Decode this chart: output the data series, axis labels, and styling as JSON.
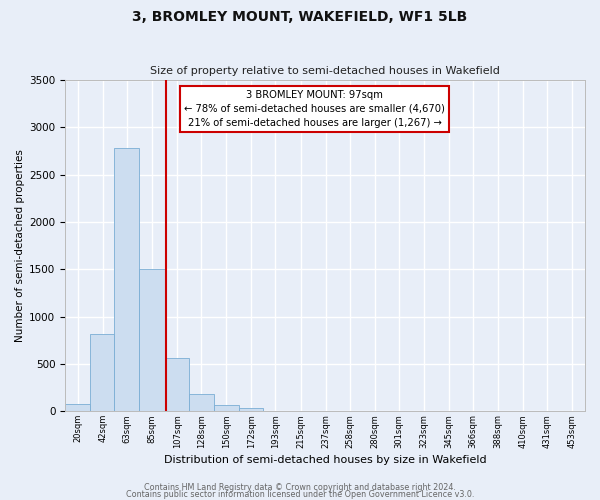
{
  "title": "3, BROMLEY MOUNT, WAKEFIELD, WF1 5LB",
  "subtitle": "Size of property relative to semi-detached houses in Wakefield",
  "xlabel": "Distribution of semi-detached houses by size in Wakefield",
  "ylabel": "Number of semi-detached properties",
  "bin_edges": [
    9,
    31,
    52,
    74,
    96,
    117,
    139,
    161,
    182,
    204,
    226,
    247,
    269,
    290,
    312,
    334,
    355,
    377,
    399,
    420,
    442,
    464
  ],
  "tick_positions": [
    20,
    42,
    63,
    85,
    107,
    128,
    150,
    172,
    193,
    215,
    237,
    258,
    280,
    301,
    323,
    345,
    366,
    388,
    410,
    431,
    453
  ],
  "tick_labels": [
    "20sqm",
    "42sqm",
    "63sqm",
    "85sqm",
    "107sqm",
    "128sqm",
    "150sqm",
    "172sqm",
    "193sqm",
    "215sqm",
    "237sqm",
    "258sqm",
    "280sqm",
    "301sqm",
    "323sqm",
    "345sqm",
    "366sqm",
    "388sqm",
    "410sqm",
    "431sqm",
    "453sqm"
  ],
  "bar_heights": [
    75,
    820,
    2780,
    1500,
    560,
    185,
    65,
    30,
    0,
    0,
    0,
    0,
    0,
    0,
    0,
    0,
    0,
    0,
    0,
    0,
    0
  ],
  "bar_color": "#ccddf0",
  "bar_edge_color": "#7aadd4",
  "ylim": [
    0,
    3500
  ],
  "yticks": [
    0,
    500,
    1000,
    1500,
    2000,
    2500,
    3000,
    3500
  ],
  "property_value": 97,
  "vline_color": "#cc0000",
  "annotation_title": "3 BROMLEY MOUNT: 97sqm",
  "annotation_line1": "← 78% of semi-detached houses are smaller (4,670)",
  "annotation_line2": "21% of semi-detached houses are larger (1,267) →",
  "annotation_box_color": "#ffffff",
  "annotation_box_edge": "#cc0000",
  "footer1": "Contains HM Land Registry data © Crown copyright and database right 2024.",
  "footer2": "Contains public sector information licensed under the Open Government Licence v3.0.",
  "bg_color": "#e8eef8",
  "plot_bg_color": "#e8eef8",
  "grid_color": "#ffffff"
}
